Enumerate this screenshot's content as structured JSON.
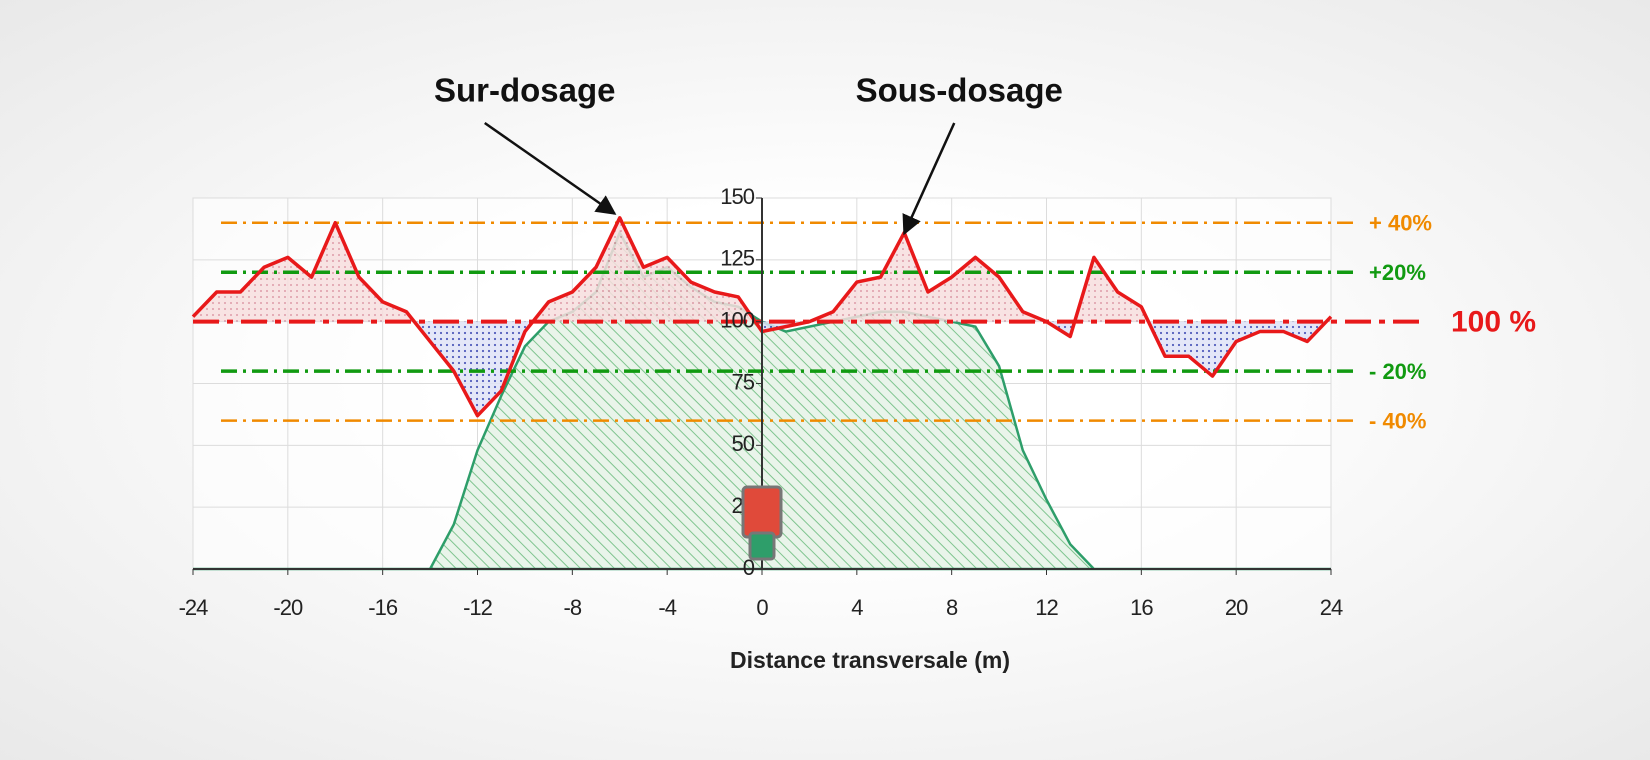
{
  "chart_data": {
    "type": "line",
    "xlabel": "Distance transversale (m)",
    "x": [
      -24,
      -23,
      -22,
      -21,
      -20,
      -19,
      -18,
      -17,
      -16,
      -15,
      -14,
      -13,
      -12,
      -11,
      -10,
      -9,
      -8,
      -7,
      -6,
      -5,
      -4,
      -3,
      -2,
      -1,
      0,
      1,
      2,
      3,
      4,
      5,
      6,
      7,
      8,
      9,
      10,
      11,
      12,
      13,
      14,
      15,
      16,
      17,
      18,
      19,
      20,
      21,
      22,
      23,
      24
    ],
    "series": [
      {
        "color": "#e8191a",
        "values": [
          102,
          112,
          112,
          122,
          126,
          118,
          140,
          118,
          108,
          104,
          92,
          80,
          62,
          72,
          96,
          108,
          112,
          122,
          142,
          122,
          126,
          116,
          112,
          110,
          96,
          98,
          100,
          104,
          116,
          118,
          136,
          112,
          118,
          126,
          118,
          104,
          100,
          94,
          126,
          112,
          106,
          86,
          86,
          78,
          92,
          96,
          96,
          92,
          102
        ]
      },
      {
        "color": "#2e9e6a",
        "values": [
          0,
          0,
          0,
          0,
          0,
          0,
          0,
          0,
          0,
          0,
          0,
          18,
          48,
          70,
          90,
          100,
          104,
          112,
          136,
          118,
          122,
          114,
          108,
          106,
          100,
          96,
          98,
          100,
          102,
          104,
          104,
          102,
          100,
          98,
          82,
          48,
          28,
          10,
          0,
          0,
          0,
          0,
          0,
          0,
          0,
          0,
          0,
          0,
          0
        ]
      }
    ],
    "xlim": [
      -24,
      24
    ],
    "ylim": [
      0,
      150
    ],
    "xticks": [
      -24,
      -20,
      -16,
      -12,
      -8,
      -4,
      0,
      4,
      8,
      12,
      16,
      20,
      24
    ],
    "yticks": [
      0,
      25,
      50,
      75,
      100,
      125,
      150
    ],
    "grid": true,
    "reference_lines": [
      {
        "value": 140,
        "label": "+ 40%",
        "color": "#f08a00"
      },
      {
        "value": 120,
        "label": "+20%",
        "color": "#119a11"
      },
      {
        "value": 100,
        "label": "100 %",
        "color": "#e8191a"
      },
      {
        "value": 80,
        "label": "- 20%",
        "color": "#119a11"
      },
      {
        "value": 60,
        "label": "- 40%",
        "color": "#f08a00"
      }
    ],
    "annotations": [
      {
        "text": "Sur-dosage",
        "x": -6,
        "y": 142
      },
      {
        "text": "Sous-dosage",
        "x": 6,
        "y": 134
      }
    ]
  }
}
